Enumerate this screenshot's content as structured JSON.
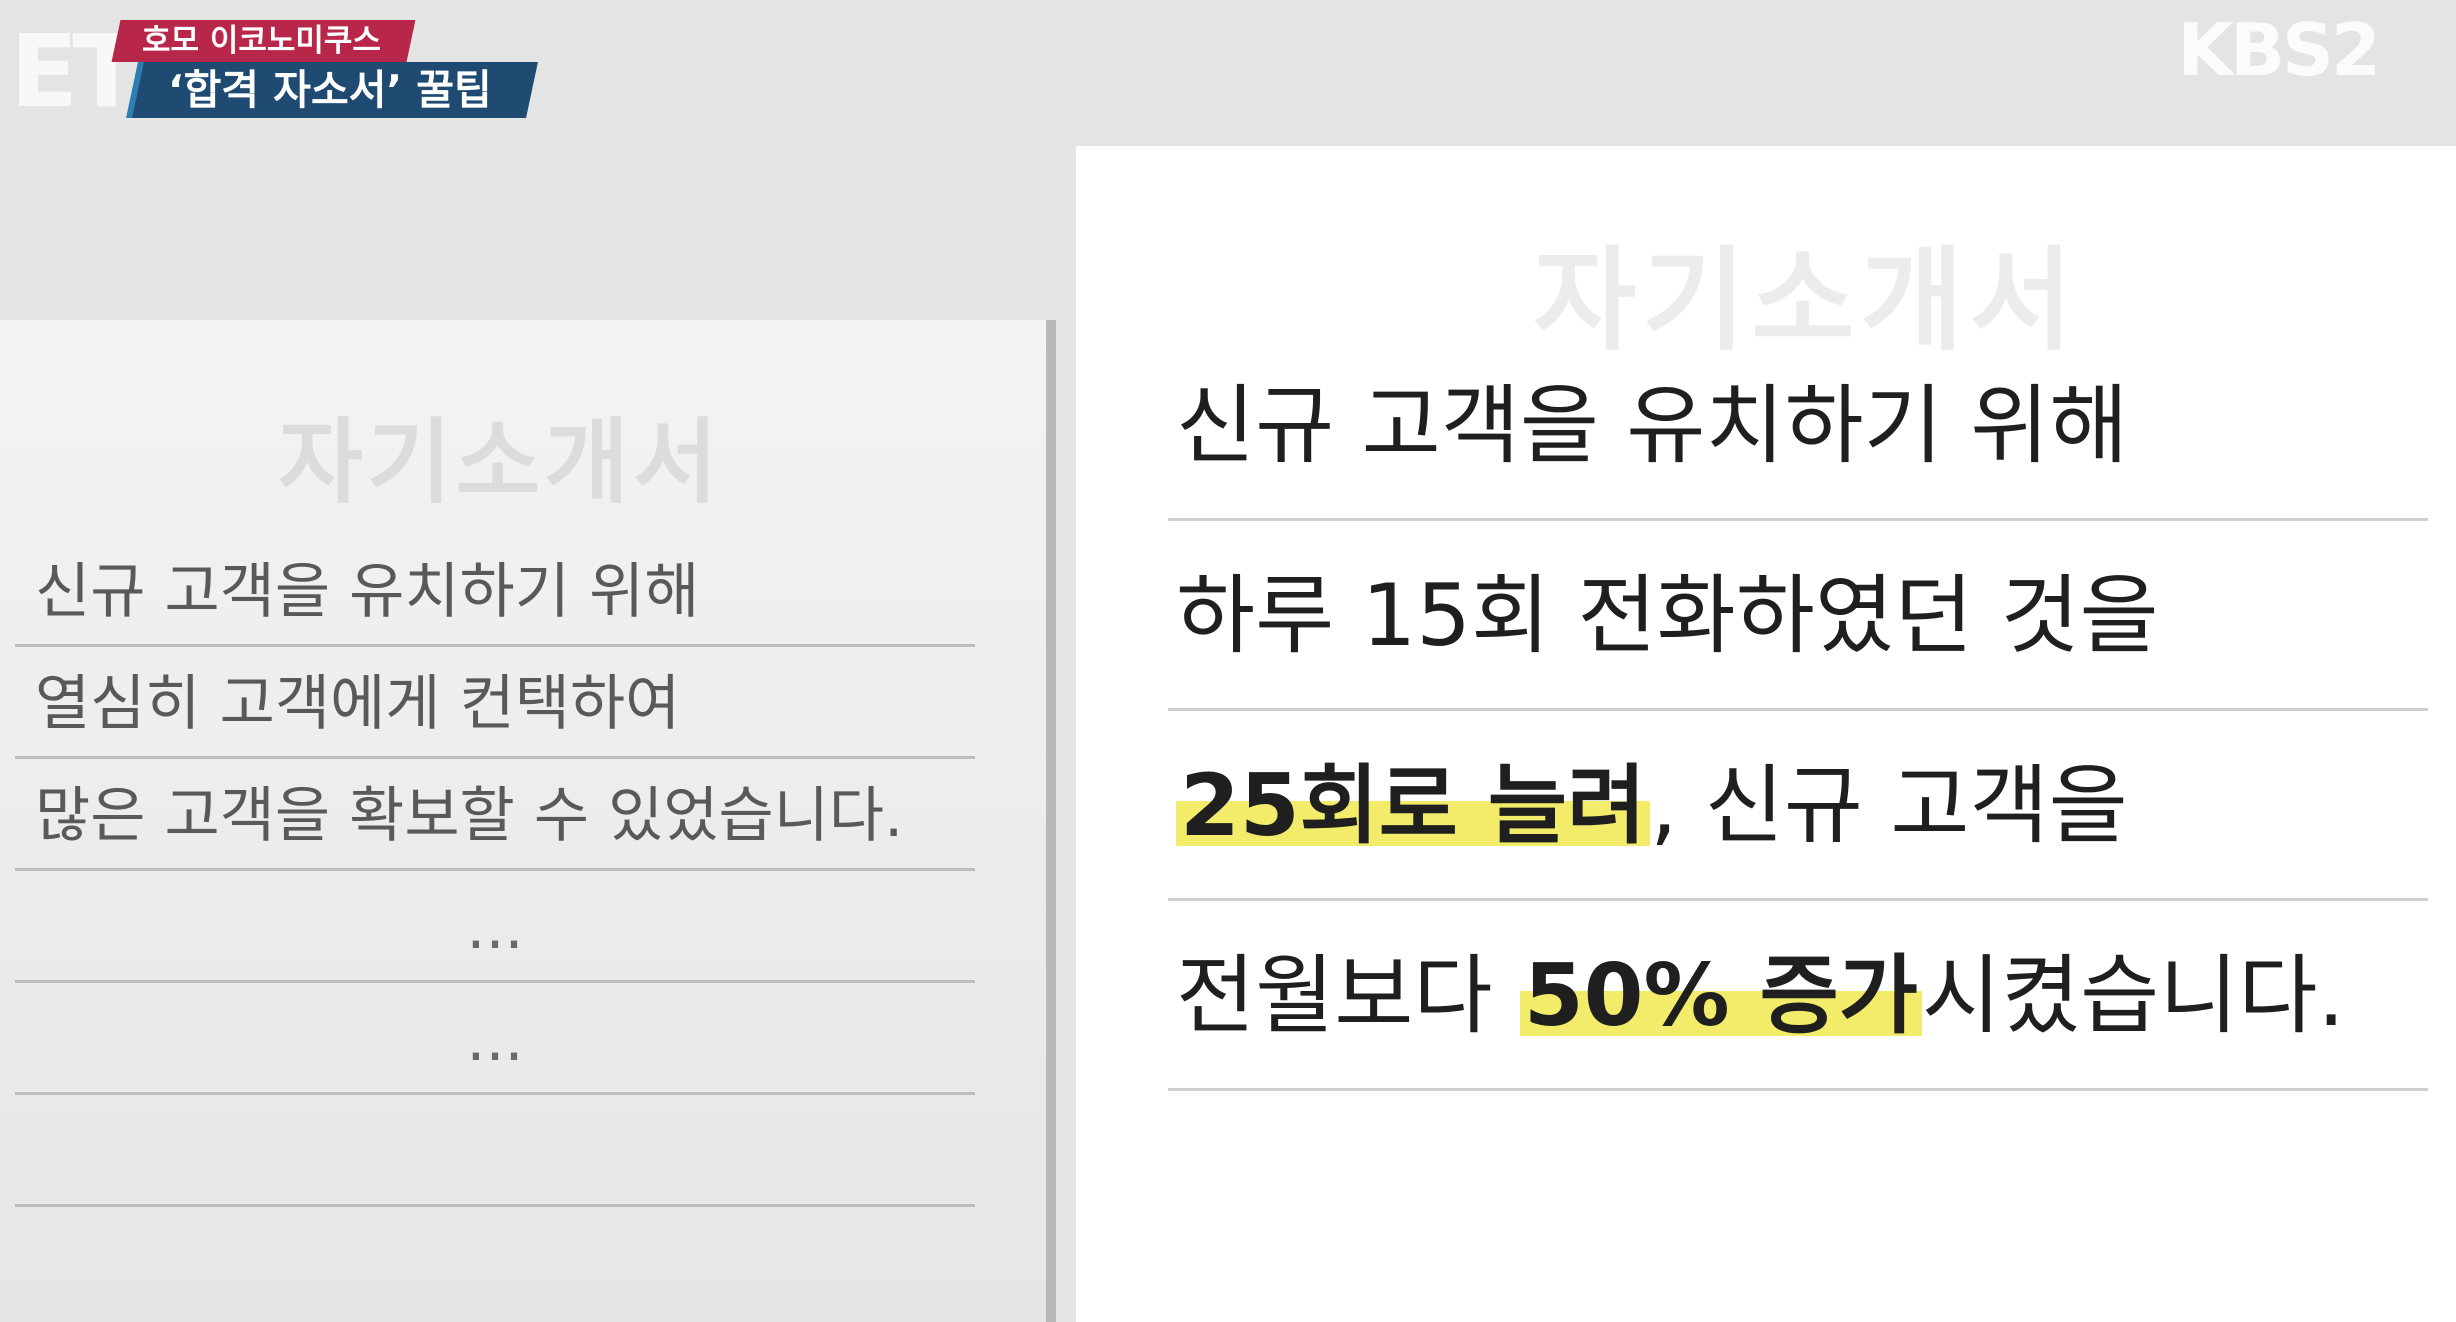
{
  "broadcast": {
    "program_logo": "ET",
    "program_name": "호모 이코노미쿠스",
    "episode_title": "‘합격 자소서’ 꿀팁",
    "channel_logo": "KBS2"
  },
  "before_doc": {
    "title": "자기소개서",
    "lines": [
      "신규 고객을 유치하기 위해",
      "열심히 고객에게 컨택하여",
      "많은 고객을 확보할 수 있었습니다.",
      "...",
      "...",
      ""
    ]
  },
  "after_doc": {
    "title": "자기소개서",
    "line1": "신규 고객을 유치하기 위해",
    "line2": "하루 15회 전화하였던 것을",
    "line3_highlight": "25회로 늘려",
    "line3_rest": ", 신규 고객을",
    "line4_before": "전월보다 ",
    "line4_highlight": "50% 증가",
    "line4_after": "시켰습니다.",
    "highlight_color": "#f3ec6b"
  }
}
